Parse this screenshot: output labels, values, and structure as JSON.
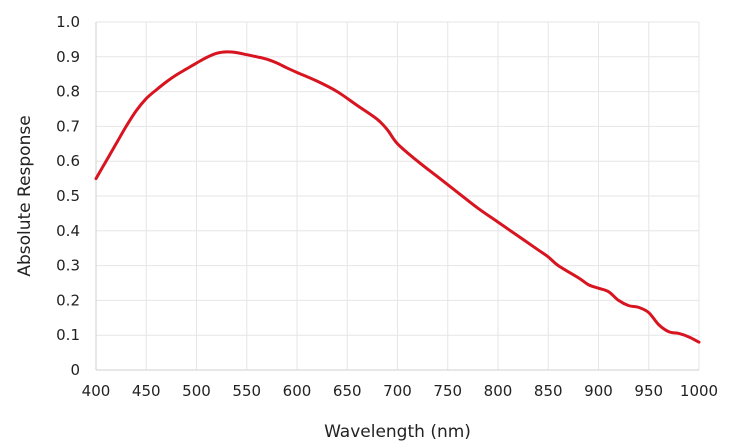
{
  "chart_data": {
    "type": "line",
    "title": "",
    "xlabel": "Wavelength (nm)",
    "ylabel": "Absolute Response",
    "xlim": [
      400,
      1000
    ],
    "ylim": [
      0,
      1.0
    ],
    "x_ticks": [
      400,
      450,
      500,
      550,
      600,
      650,
      700,
      750,
      800,
      850,
      900,
      950,
      1000
    ],
    "x_tick_labels": [
      "400",
      "450",
      "500",
      "550",
      "600",
      "650",
      "700",
      "750",
      "800",
      "850",
      "900",
      "950",
      "1000"
    ],
    "y_ticks": [
      0,
      0.1,
      0.2,
      0.3,
      0.4,
      0.5,
      0.6,
      0.7,
      0.8,
      0.9,
      1.0
    ],
    "y_tick_labels": [
      "0",
      "0.1",
      "0.2",
      "0.3",
      "0.4",
      "0.5",
      "0.6",
      "0.7",
      "0.8",
      "0.9",
      "1.0"
    ],
    "grid": true,
    "legend": "none",
    "line_color": "#d7141f",
    "series": [
      {
        "x": [
          400,
          410,
          420,
          430,
          440,
          450,
          460,
          470,
          480,
          490,
          500,
          510,
          520,
          530,
          540,
          550,
          560,
          570,
          580,
          590,
          600,
          620,
          640,
          660,
          680,
          690,
          700,
          720,
          740,
          760,
          780,
          800,
          820,
          840,
          850,
          860,
          880,
          890,
          900,
          910,
          920,
          930,
          940,
          950,
          960,
          970,
          980,
          990,
          1000
        ],
        "y": [
          0.55,
          0.6,
          0.65,
          0.7,
          0.745,
          0.78,
          0.805,
          0.828,
          0.848,
          0.865,
          0.882,
          0.898,
          0.91,
          0.914,
          0.912,
          0.906,
          0.9,
          0.893,
          0.882,
          0.868,
          0.855,
          0.83,
          0.8,
          0.76,
          0.72,
          0.69,
          0.65,
          0.6,
          0.555,
          0.51,
          0.465,
          0.425,
          0.385,
          0.345,
          0.325,
          0.3,
          0.265,
          0.245,
          0.235,
          0.225,
          0.2,
          0.185,
          0.18,
          0.165,
          0.13,
          0.11,
          0.105,
          0.095,
          0.08
        ]
      }
    ]
  }
}
